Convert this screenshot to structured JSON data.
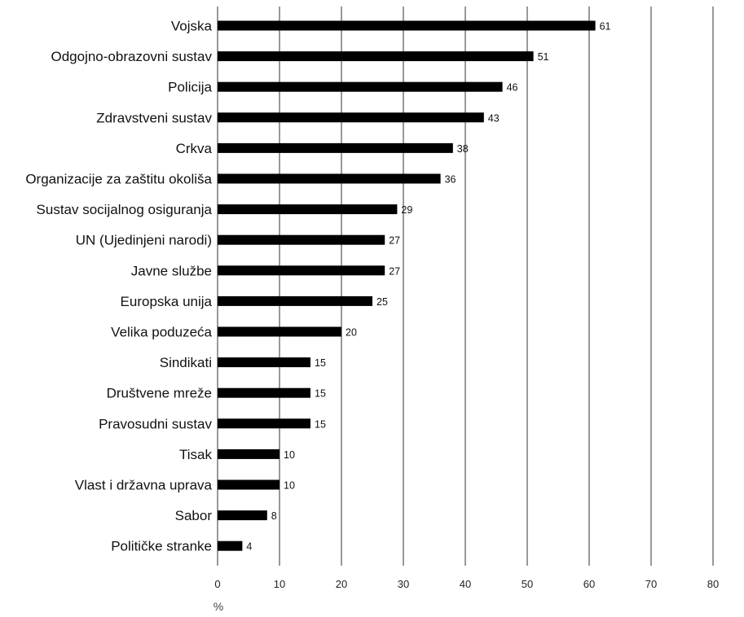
{
  "chart_data": {
    "type": "bar",
    "orientation": "horizontal",
    "categories": [
      "Vojska",
      "Odgojno-obrazovni sustav",
      "Policija",
      "Zdravstveni sustav",
      "Crkva",
      "Organizacije za zaštitu okoliša",
      "Sustav socijalnog osiguranja",
      "UN (Ujedinjeni narodi)",
      "Javne službe",
      "Europska unija",
      "Velika poduzeća",
      "Sindikati",
      "Društvene mreže",
      "Pravosudni sustav",
      "Tisak",
      "Vlast i državna uprava",
      "Sabor",
      "Političke stranke"
    ],
    "values": [
      61,
      51,
      46,
      43,
      38,
      36,
      29,
      27,
      27,
      25,
      20,
      15,
      15,
      15,
      10,
      10,
      8,
      4
    ],
    "value_labels": [
      "61",
      "51",
      "46",
      "43",
      "38",
      "36",
      "29",
      "27",
      "27",
      "25",
      "20",
      "15",
      "15",
      "15",
      "10",
      "10",
      "8",
      "4"
    ],
    "xticks": [
      0,
      10,
      20,
      30,
      40,
      50,
      60,
      70,
      80
    ],
    "xtick_labels": [
      "0",
      "10",
      "20",
      "30",
      "40",
      "50",
      "60",
      "70",
      "80"
    ],
    "xlim": [
      0,
      80
    ],
    "xlabel": "%",
    "grid": true,
    "legend": "none",
    "colors": {
      "bar": "#000000",
      "grid": "#333333",
      "background": "#ffffff"
    }
  }
}
